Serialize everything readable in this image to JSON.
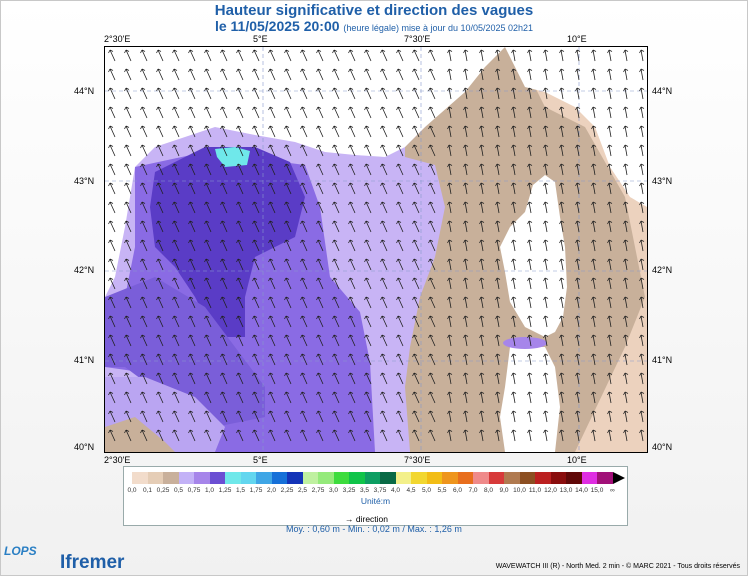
{
  "title": "Hauteur significative et direction des vagues",
  "subtitle_date": "le 11/05/2025 20:00",
  "subtitle_note": "(heure légale) mise à jour du 10/05/2025 02h21",
  "lon_labels": [
    "2°30'E",
    "5°E",
    "7°30'E",
    "10°E"
  ],
  "lat_labels": [
    "44°N",
    "43°N",
    "42°N",
    "41°N",
    "40°N"
  ],
  "legend": {
    "ticks": [
      "0,0",
      "0,1",
      "0,25",
      "0,5",
      "0,75",
      "1,0",
      "1,25",
      "1,5",
      "1,75",
      "2,0",
      "2,25",
      "2,5",
      "2,75",
      "3,0",
      "3,25",
      "3,5",
      "3,75",
      "4,0",
      "4,5",
      "5,0",
      "5,5",
      "6,0",
      "7,0",
      "8,0",
      "9,0",
      "10,0",
      "11,0",
      "12,0",
      "13,0",
      "14,0",
      "15,0",
      "∞"
    ],
    "colors": [
      "#f2dccb",
      "#e5cdb6",
      "#c9b09b",
      "#c3b2f7",
      "#a685ea",
      "#6b4fd3",
      "#6fe8ea",
      "#62d6ef",
      "#3fa6e6",
      "#1670d8",
      "#1334b8",
      "#bff0a0",
      "#95ea7b",
      "#3ddc3d",
      "#10c449",
      "#0d9e62",
      "#096a45",
      "#f3f08a",
      "#f2d730",
      "#f2bd16",
      "#ee951d",
      "#e86e1d",
      "#ef8a8a",
      "#d73a3a",
      "#b07a50",
      "#8c4f22",
      "#bb2020",
      "#8a0d0d",
      "#600808",
      "#df2de2",
      "#a11078"
    ],
    "unit": "Unité:m",
    "direction_label": "direction"
  },
  "stats": "Moy. : 0,60 m   -   Min. : 0,02 m / Max. : 1,26 m",
  "credit": "WAVEWATCH III (R) - North Med. 2 min - © MARC 2021 - Tous droits réservés",
  "logos": {
    "lops": "LOPS",
    "ifremer": "Ifremer"
  },
  "map_data": {
    "lon_range": [
      2.25,
      11.75
    ],
    "lat_range": [
      40.0,
      44.5
    ],
    "wave_direction": "northwest"
  }
}
